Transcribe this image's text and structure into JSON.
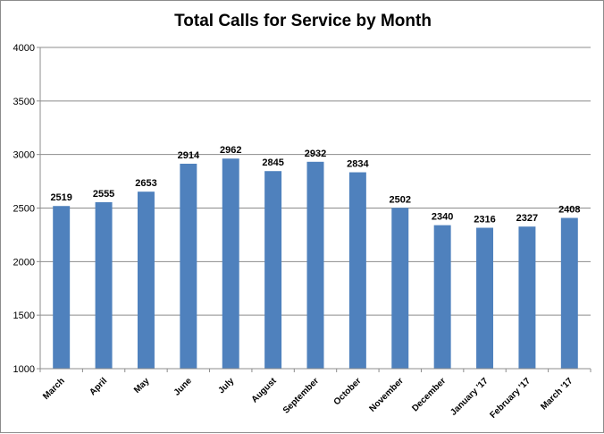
{
  "chart_data": {
    "type": "bar",
    "title": "Total Calls for Service by Month",
    "xlabel": "",
    "ylabel": "",
    "categories": [
      "March",
      "April",
      "May",
      "June",
      "July",
      "August",
      "September",
      "October",
      "November",
      "December",
      "January '17",
      "February '17",
      "March '17"
    ],
    "values": [
      2519,
      2555,
      2653,
      2914,
      2962,
      2845,
      2932,
      2834,
      2502,
      2340,
      2316,
      2327,
      2408
    ],
    "ylim": [
      1000,
      4000
    ],
    "yticks": [
      1000,
      1500,
      2000,
      2500,
      3000,
      3500,
      4000
    ],
    "grid": true,
    "legend": "none",
    "colors": {
      "bar": "#4F81BD",
      "grid": "#8c8c8c",
      "axis": "#8c8c8c"
    }
  }
}
